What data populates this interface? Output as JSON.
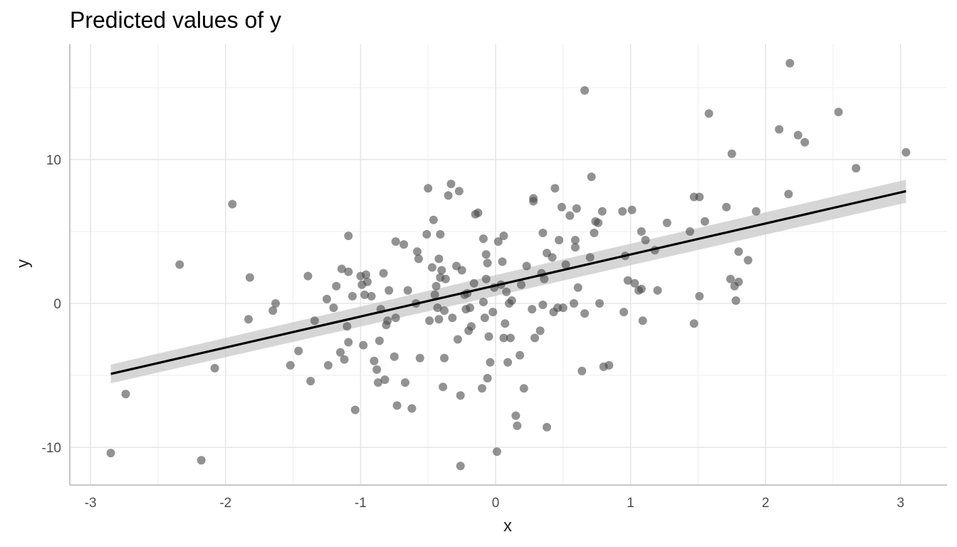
{
  "chart_data": {
    "type": "scatter",
    "title": "Predicted values of y",
    "xlabel": "x",
    "ylabel": "y",
    "xlim": [
      -3.0,
      3.3
    ],
    "ylim": [
      -12.7,
      18.0
    ],
    "x_ticks": [
      -3,
      -2,
      -1,
      0,
      1,
      2,
      3
    ],
    "x_tick_labels": [
      "-3",
      "-2",
      "-1",
      "0",
      "1",
      "2",
      "3"
    ],
    "y_ticks": [
      -10,
      0,
      10
    ],
    "y_tick_labels": [
      "-10",
      "0",
      "10"
    ],
    "x_minor_ticks": [
      -2.5,
      -1.5,
      -0.5,
      0.5,
      1.5,
      2.5
    ],
    "y_minor_ticks": [
      -5,
      5,
      15
    ],
    "grid": true,
    "legend": "none",
    "colors": {
      "points": "#4a4a4a",
      "line": "#000000",
      "ribbon": "#c8c8c8",
      "grid": "#e5e5e5"
    },
    "fit_line": {
      "x": [
        -2.85,
        3.04
      ],
      "y": [
        -4.9,
        7.8
      ],
      "ci_lower": [
        -5.55,
        7.0
      ],
      "ci_upper": [
        -4.25,
        8.6
      ]
    },
    "points": [
      [
        -2.85,
        -10.4
      ],
      [
        -2.74,
        -6.3
      ],
      [
        -2.34,
        2.7
      ],
      [
        -2.18,
        -10.9
      ],
      [
        -2.08,
        -4.5
      ],
      [
        -1.95,
        6.9
      ],
      [
        -1.83,
        -1.1
      ],
      [
        -1.82,
        1.8
      ],
      [
        -1.65,
        -0.5
      ],
      [
        -1.63,
        0.0
      ],
      [
        -1.52,
        -4.3
      ],
      [
        -1.46,
        -3.3
      ],
      [
        -1.39,
        1.9
      ],
      [
        -1.37,
        -5.4
      ],
      [
        -1.34,
        -1.2
      ],
      [
        -1.25,
        0.3
      ],
      [
        -1.24,
        -4.3
      ],
      [
        -1.2,
        -0.3
      ],
      [
        -1.18,
        1.2
      ],
      [
        -1.15,
        -3.4
      ],
      [
        -1.14,
        2.4
      ],
      [
        -1.12,
        -3.9
      ],
      [
        -1.1,
        -1.6
      ],
      [
        -1.09,
        -2.7
      ],
      [
        -1.09,
        2.2
      ],
      [
        -1.09,
        4.7
      ],
      [
        -1.06,
        0.5
      ],
      [
        -1.04,
        -7.4
      ],
      [
        -1.0,
        1.9
      ],
      [
        -0.99,
        1.3
      ],
      [
        -0.98,
        -2.9
      ],
      [
        -0.97,
        0.6
      ],
      [
        -0.96,
        2.0
      ],
      [
        -0.95,
        1.5
      ],
      [
        -0.92,
        0.5
      ],
      [
        -0.9,
        -4.0
      ],
      [
        -0.88,
        -4.6
      ],
      [
        -0.87,
        -5.5
      ],
      [
        -0.86,
        -2.6
      ],
      [
        -0.85,
        -0.4
      ],
      [
        -0.83,
        2.1
      ],
      [
        -0.82,
        -5.3
      ],
      [
        -0.81,
        -1.5
      ],
      [
        -0.8,
        -1.2
      ],
      [
        -0.79,
        0.9
      ],
      [
        -0.75,
        -3.7
      ],
      [
        -0.74,
        -1.0
      ],
      [
        -0.74,
        4.3
      ],
      [
        -0.73,
        -7.1
      ],
      [
        -0.68,
        4.1
      ],
      [
        -0.67,
        -5.5
      ],
      [
        -0.65,
        0.9
      ],
      [
        -0.62,
        -7.3
      ],
      [
        -0.59,
        0.0
      ],
      [
        -0.58,
        3.6
      ],
      [
        -0.57,
        3.1
      ],
      [
        -0.56,
        -3.8
      ],
      [
        -0.51,
        4.8
      ],
      [
        -0.5,
        8.0
      ],
      [
        -0.49,
        -1.2
      ],
      [
        -0.47,
        2.5
      ],
      [
        -0.46,
        5.8
      ],
      [
        -0.45,
        0.6
      ],
      [
        -0.44,
        1.2
      ],
      [
        -0.43,
        -0.3
      ],
      [
        -0.42,
        -1.1
      ],
      [
        -0.42,
        3.1
      ],
      [
        -0.41,
        1.8
      ],
      [
        -0.41,
        4.8
      ],
      [
        -0.4,
        2.3
      ],
      [
        -0.39,
        -5.8
      ],
      [
        -0.38,
        -3.8
      ],
      [
        -0.38,
        -0.5
      ],
      [
        -0.37,
        1.7
      ],
      [
        -0.35,
        7.5
      ],
      [
        -0.33,
        8.3
      ],
      [
        -0.32,
        -1.0
      ],
      [
        -0.29,
        2.6
      ],
      [
        -0.28,
        -2.5
      ],
      [
        -0.27,
        7.8
      ],
      [
        -0.26,
        -11.3
      ],
      [
        -0.26,
        -6.4
      ],
      [
        -0.25,
        2.3
      ],
      [
        -0.23,
        0.6
      ],
      [
        -0.22,
        -0.4
      ],
      [
        -0.21,
        0.7
      ],
      [
        -0.2,
        -1.9
      ],
      [
        -0.19,
        -0.3
      ],
      [
        -0.18,
        -1.6
      ],
      [
        -0.16,
        1.4
      ],
      [
        -0.15,
        6.2
      ],
      [
        -0.13,
        6.3
      ],
      [
        -0.1,
        -5.9
      ],
      [
        -0.09,
        0.1
      ],
      [
        -0.09,
        4.5
      ],
      [
        -0.08,
        -1.0
      ],
      [
        -0.07,
        1.7
      ],
      [
        -0.07,
        3.4
      ],
      [
        -0.06,
        -5.2
      ],
      [
        -0.06,
        2.8
      ],
      [
        -0.05,
        -2.3
      ],
      [
        -0.04,
        -4.1
      ],
      [
        -0.02,
        -0.6
      ],
      [
        -0.01,
        1.1
      ],
      [
        0.01,
        -10.3
      ],
      [
        0.02,
        4.3
      ],
      [
        0.04,
        1.3
      ],
      [
        0.05,
        2.9
      ],
      [
        0.06,
        -2.4
      ],
      [
        0.06,
        4.7
      ],
      [
        0.07,
        -1.4
      ],
      [
        0.08,
        0.8
      ],
      [
        0.09,
        -4.1
      ],
      [
        0.1,
        0.0
      ],
      [
        0.11,
        -2.4
      ],
      [
        0.12,
        0.2
      ],
      [
        0.15,
        -7.8
      ],
      [
        0.16,
        -8.5
      ],
      [
        0.18,
        -3.6
      ],
      [
        0.19,
        1.3
      ],
      [
        0.21,
        -5.9
      ],
      [
        0.23,
        2.6
      ],
      [
        0.27,
        -0.4
      ],
      [
        0.28,
        7.1
      ],
      [
        0.28,
        7.3
      ],
      [
        0.29,
        -2.4
      ],
      [
        0.33,
        -1.9
      ],
      [
        0.34,
        2.1
      ],
      [
        0.35,
        -0.1
      ],
      [
        0.35,
        4.9
      ],
      [
        0.36,
        1.7
      ],
      [
        0.38,
        -8.6
      ],
      [
        0.38,
        3.5
      ],
      [
        0.42,
        3.2
      ],
      [
        0.43,
        -0.6
      ],
      [
        0.44,
        8.0
      ],
      [
        0.46,
        -0.3
      ],
      [
        0.47,
        4.4
      ],
      [
        0.49,
        6.7
      ],
      [
        0.5,
        -0.3
      ],
      [
        0.52,
        2.7
      ],
      [
        0.55,
        6.1
      ],
      [
        0.58,
        0.0
      ],
      [
        0.59,
        3.9
      ],
      [
        0.59,
        4.4
      ],
      [
        0.6,
        6.6
      ],
      [
        0.61,
        1.1
      ],
      [
        0.64,
        -4.7
      ],
      [
        0.66,
        14.8
      ],
      [
        0.66,
        -0.7
      ],
      [
        0.7,
        3.2
      ],
      [
        0.71,
        8.8
      ],
      [
        0.73,
        4.9
      ],
      [
        0.74,
        5.7
      ],
      [
        0.76,
        5.6
      ],
      [
        0.77,
        0.0
      ],
      [
        0.79,
        6.4
      ],
      [
        0.8,
        -4.4
      ],
      [
        0.84,
        -4.3
      ],
      [
        0.94,
        6.4
      ],
      [
        0.95,
        -0.6
      ],
      [
        0.96,
        3.3
      ],
      [
        0.98,
        1.6
      ],
      [
        1.01,
        6.5
      ],
      [
        1.03,
        1.4
      ],
      [
        1.06,
        0.9
      ],
      [
        1.08,
        5.0
      ],
      [
        1.08,
        1.0
      ],
      [
        1.09,
        -1.2
      ],
      [
        1.11,
        4.4
      ],
      [
        1.18,
        3.7
      ],
      [
        1.2,
        0.9
      ],
      [
        1.27,
        5.6
      ],
      [
        1.44,
        5.0
      ],
      [
        1.47,
        -1.4
      ],
      [
        1.47,
        7.4
      ],
      [
        1.51,
        0.5
      ],
      [
        1.51,
        7.4
      ],
      [
        1.55,
        5.7
      ],
      [
        1.58,
        13.2
      ],
      [
        1.71,
        6.7
      ],
      [
        1.74,
        1.7
      ],
      [
        1.75,
        10.4
      ],
      [
        1.77,
        1.2
      ],
      [
        1.78,
        0.2
      ],
      [
        1.8,
        1.5
      ],
      [
        1.8,
        3.6
      ],
      [
        1.87,
        3.0
      ],
      [
        1.93,
        6.4
      ],
      [
        2.1,
        12.1
      ],
      [
        2.17,
        7.6
      ],
      [
        2.18,
        16.7
      ],
      [
        2.24,
        11.7
      ],
      [
        2.29,
        11.2
      ],
      [
        2.54,
        13.3
      ],
      [
        2.67,
        9.4
      ],
      [
        3.04,
        10.5
      ]
    ]
  }
}
